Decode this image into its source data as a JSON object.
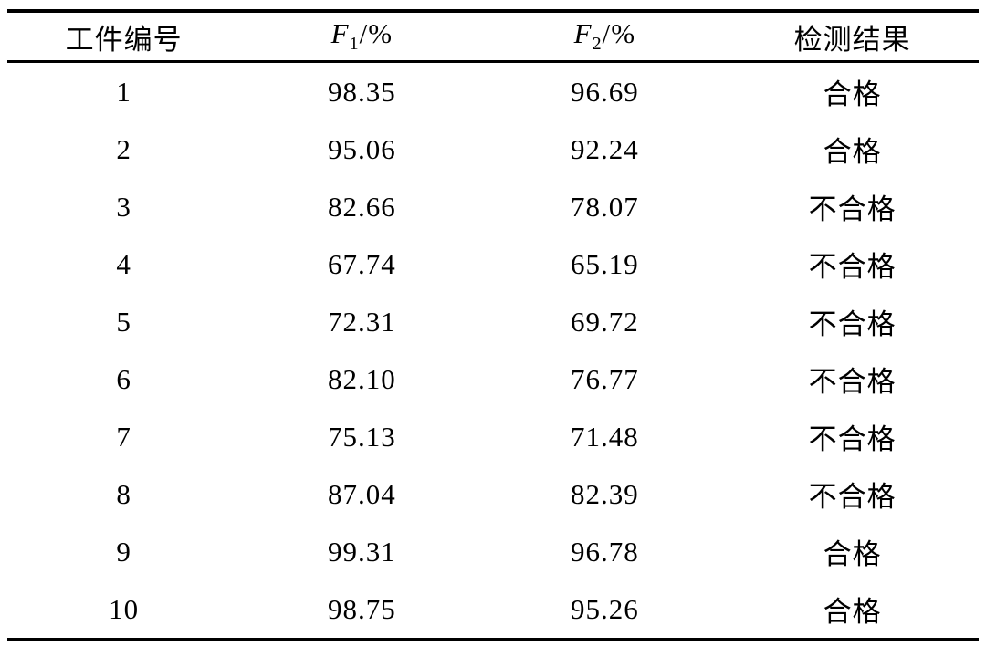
{
  "table": {
    "headers": {
      "workpiece": "工件编号",
      "f1": {
        "base": "F",
        "sub": "1",
        "rest": "/%"
      },
      "f2": {
        "base": "F",
        "sub": "2",
        "rest": "/%"
      },
      "result": "检测结果"
    },
    "rows": [
      {
        "id": "1",
        "f1": "98.35",
        "f2": "96.69",
        "result": "合格"
      },
      {
        "id": "2",
        "f1": "95.06",
        "f2": "92.24",
        "result": "合格"
      },
      {
        "id": "3",
        "f1": "82.66",
        "f2": "78.07",
        "result": "不合格"
      },
      {
        "id": "4",
        "f1": "67.74",
        "f2": "65.19",
        "result": "不合格"
      },
      {
        "id": "5",
        "f1": "72.31",
        "f2": "69.72",
        "result": "不合格"
      },
      {
        "id": "6",
        "f1": "82.10",
        "f2": "76.77",
        "result": "不合格"
      },
      {
        "id": "7",
        "f1": "75.13",
        "f2": "71.48",
        "result": "不合格"
      },
      {
        "id": "8",
        "f1": "87.04",
        "f2": "82.39",
        "result": "不合格"
      },
      {
        "id": "9",
        "f1": "99.31",
        "f2": "96.78",
        "result": "合格"
      },
      {
        "id": "10",
        "f1": "98.75",
        "f2": "95.26",
        "result": "合格"
      }
    ]
  },
  "chart_data": {
    "type": "table",
    "title": "",
    "columns": [
      "工件编号",
      "F1/%",
      "F2/%",
      "检测结果"
    ],
    "rows": [
      [
        "1",
        98.35,
        96.69,
        "合格"
      ],
      [
        "2",
        95.06,
        92.24,
        "合格"
      ],
      [
        "3",
        82.66,
        78.07,
        "不合格"
      ],
      [
        "4",
        67.74,
        65.19,
        "不合格"
      ],
      [
        "5",
        72.31,
        69.72,
        "不合格"
      ],
      [
        "6",
        82.1,
        76.77,
        "不合格"
      ],
      [
        "7",
        75.13,
        71.48,
        "不合格"
      ],
      [
        "8",
        87.04,
        82.39,
        "不合格"
      ],
      [
        "9",
        99.31,
        96.78,
        "合格"
      ],
      [
        "10",
        98.75,
        95.26,
        "合格"
      ]
    ]
  }
}
